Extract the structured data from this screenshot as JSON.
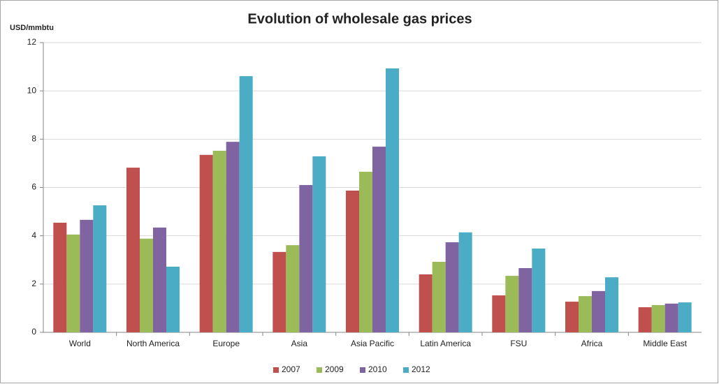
{
  "chart_data": {
    "type": "bar",
    "title": "Evolution of wholesale gas prices",
    "y_label": "USD/mmbtu",
    "categories": [
      "World",
      "North America",
      "Europe",
      "Asia",
      "Asia Pacific",
      "Latin America",
      "FSU",
      "Africa",
      "Middle East"
    ],
    "series": [
      {
        "name": "2007",
        "color": "#c0504d",
        "values": [
          4.54,
          6.82,
          7.35,
          3.33,
          5.87,
          2.4,
          1.53,
          1.27,
          1.04
        ]
      },
      {
        "name": "2009",
        "color": "#9bbb59",
        "values": [
          4.05,
          3.88,
          7.52,
          3.61,
          6.65,
          2.92,
          2.34,
          1.5,
          1.13
        ]
      },
      {
        "name": "2010",
        "color": "#8064a2",
        "values": [
          4.66,
          4.34,
          7.89,
          6.1,
          7.69,
          3.73,
          2.66,
          1.71,
          1.19
        ]
      },
      {
        "name": "2012",
        "color": "#4bacc6",
        "values": [
          5.26,
          2.72,
          10.61,
          7.29,
          10.93,
          4.14,
          3.47,
          2.28,
          1.24
        ]
      }
    ],
    "ylim": [
      0,
      12
    ],
    "yticks": [
      0,
      2,
      4,
      6,
      8,
      10,
      12
    ],
    "grid": true,
    "legend": "bottom"
  }
}
